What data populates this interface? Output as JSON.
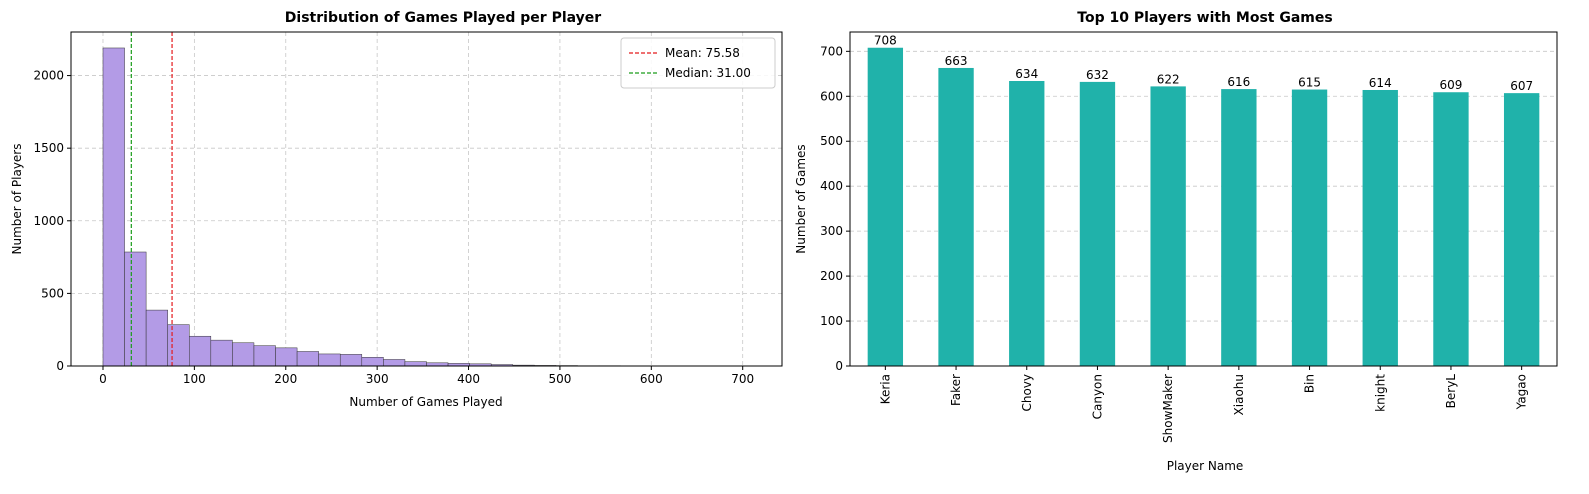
{
  "chart_data": [
    {
      "type": "bar",
      "title": "Distribution of Games Played per Player",
      "xlabel": "Number of Games Played",
      "ylabel": "Number of Players",
      "xlim": [
        -35,
        743
      ],
      "ylim": [
        0,
        2300
      ],
      "xticks": [
        0,
        100,
        200,
        300,
        400,
        500,
        600,
        700
      ],
      "yticks": [
        0,
        500,
        1000,
        1500,
        2000
      ],
      "bin_width": 23.6,
      "bin_start": 0,
      "values": [
        2190,
        785,
        385,
        285,
        205,
        178,
        160,
        140,
        125,
        100,
        83,
        80,
        60,
        45,
        30,
        22,
        18,
        15,
        10,
        6,
        4,
        3,
        2,
        2,
        1,
        1,
        1
      ],
      "bar_color": "#b39be6",
      "reference_lines": [
        {
          "label": "Mean: 75.58",
          "value": 75.58,
          "color": "#e41a1c"
        },
        {
          "label": "Median: 31.00",
          "value": 31.0,
          "color": "#1a9c1a"
        }
      ],
      "legend": "top-right",
      "grid": true
    },
    {
      "type": "bar",
      "title": "Top 10 Players with Most Games",
      "xlabel": "Player Name",
      "ylabel": "Number of Games",
      "ylim": [
        0,
        743
      ],
      "yticks": [
        0,
        100,
        200,
        300,
        400,
        500,
        600,
        700
      ],
      "categories": [
        "Keria",
        "Faker",
        "Chovy",
        "Canyon",
        "ShowMaker",
        "Xiaohu",
        "Bin",
        "knight",
        "BeryL",
        "Yagao"
      ],
      "values": [
        708,
        663,
        634,
        632,
        622,
        616,
        615,
        614,
        609,
        607
      ],
      "bar_color": "#20b2aa",
      "grid": "y"
    }
  ]
}
